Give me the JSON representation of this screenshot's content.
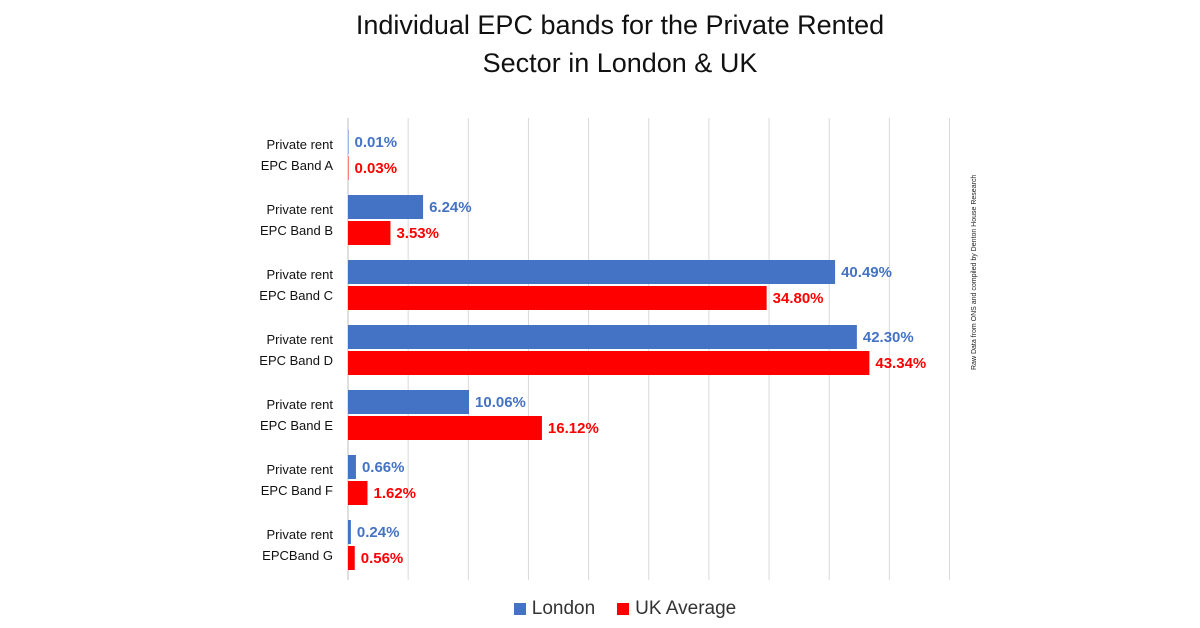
{
  "chart_data": {
    "type": "bar",
    "orientation": "horizontal",
    "title_lines": [
      "Individual EPC bands for the Private Rented",
      "Sector in London & UK"
    ],
    "categories": [
      [
        "Private rent",
        "EPC Band A"
      ],
      [
        "Private rent",
        "EPC Band B"
      ],
      [
        "Private rent",
        "EPC Band C"
      ],
      [
        "Private rent",
        "EPC Band D"
      ],
      [
        "Private rent",
        "EPC Band E"
      ],
      [
        "Private rent",
        "EPC Band F"
      ],
      [
        "Private rent",
        "EPCBand G"
      ]
    ],
    "series": [
      {
        "name": "London",
        "color": "#4472C4",
        "values": [
          0.01,
          6.24,
          40.49,
          42.3,
          10.06,
          0.66,
          0.24
        ],
        "labels": [
          "0.01%",
          "6.24%",
          "40.49%",
          "42.30%",
          "10.06%",
          "0.66%",
          "0.24%"
        ]
      },
      {
        "name": "UK Average",
        "color": "#FF0000",
        "values": [
          0.03,
          3.53,
          34.8,
          43.34,
          16.12,
          1.62,
          0.56
        ],
        "labels": [
          "0.03%",
          "3.53%",
          "34.80%",
          "43.34%",
          "16.12%",
          "1.62%",
          "0.56%"
        ]
      }
    ],
    "xlim": [
      0,
      50
    ],
    "x_gridline_step": 5,
    "grid": true,
    "legend_position": "bottom",
    "source_note": "Raw Data from ONS and compiled by Denton House Research"
  }
}
